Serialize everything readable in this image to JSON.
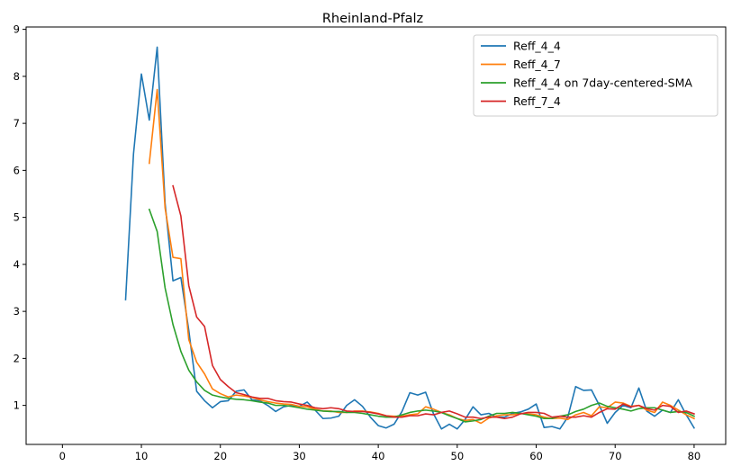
{
  "chart_data": {
    "type": "line",
    "title": "Rheinland-Pfalz",
    "xlabel": "",
    "ylabel": "",
    "xlim": [
      -4.6,
      84.0
    ],
    "ylim": [
      0.17,
      9.05
    ],
    "xticks": [
      0,
      10,
      20,
      30,
      40,
      50,
      60,
      70,
      80
    ],
    "yticks": [
      1,
      2,
      3,
      4,
      5,
      6,
      7,
      8,
      9
    ],
    "grid": false,
    "legend_position": "top-right",
    "series": [
      {
        "name": "Reff_4_4",
        "color": "#1f77b4",
        "x": [
          8,
          9,
          10,
          11,
          12,
          13,
          14,
          15,
          16,
          17,
          18,
          19,
          20,
          21,
          22,
          23,
          24,
          25,
          26,
          27,
          28,
          29,
          30,
          31,
          32,
          33,
          34,
          35,
          36,
          37,
          38,
          39,
          40,
          41,
          42,
          43,
          44,
          45,
          46,
          47,
          48,
          49,
          50,
          51,
          52,
          53,
          54,
          55,
          56,
          57,
          58,
          59,
          60,
          61,
          62,
          63,
          64,
          65,
          66,
          67,
          68,
          69,
          70,
          71,
          72,
          73,
          74,
          75,
          76,
          77,
          78,
          79,
          80
        ],
        "y": [
          3.25,
          6.35,
          8.05,
          7.07,
          8.62,
          5.3,
          3.65,
          3.72,
          2.6,
          1.3,
          1.1,
          0.95,
          1.08,
          1.1,
          1.3,
          1.33,
          1.12,
          1.1,
          1.0,
          0.87,
          0.97,
          1.0,
          0.98,
          1.07,
          0.9,
          0.72,
          0.73,
          0.77,
          1.0,
          1.12,
          0.98,
          0.75,
          0.57,
          0.52,
          0.6,
          0.87,
          1.27,
          1.22,
          1.28,
          0.82,
          0.5,
          0.6,
          0.5,
          0.7,
          0.97,
          0.8,
          0.83,
          0.75,
          0.75,
          0.83,
          0.86,
          0.92,
          1.03,
          0.53,
          0.55,
          0.5,
          0.75,
          1.4,
          1.32,
          1.33,
          1.0,
          0.62,
          0.85,
          1.0,
          0.95,
          1.37,
          0.88,
          0.77,
          0.9,
          0.85,
          1.12,
          0.8,
          0.52
        ]
      },
      {
        "name": "Reff_4_7",
        "color": "#ff7f0e",
        "x": [
          11,
          12,
          13,
          14,
          15,
          16,
          17,
          18,
          19,
          20,
          21,
          22,
          23,
          24,
          25,
          26,
          27,
          28,
          29,
          30,
          31,
          32,
          33,
          34,
          35,
          36,
          37,
          38,
          39,
          40,
          41,
          42,
          43,
          44,
          45,
          46,
          47,
          48,
          49,
          50,
          51,
          52,
          53,
          54,
          55,
          56,
          57,
          58,
          59,
          60,
          61,
          62,
          63,
          64,
          65,
          66,
          67,
          68,
          69,
          70,
          71,
          72,
          73,
          74,
          75,
          76,
          77,
          78,
          79,
          80
        ],
        "y": [
          6.15,
          7.72,
          5.2,
          4.15,
          4.12,
          2.4,
          1.92,
          1.67,
          1.35,
          1.25,
          1.18,
          1.22,
          1.2,
          1.17,
          1.12,
          1.08,
          1.05,
          1.03,
          1.02,
          0.98,
          0.97,
          0.92,
          0.88,
          0.88,
          0.85,
          0.85,
          0.88,
          0.88,
          0.86,
          0.83,
          0.78,
          0.77,
          0.77,
          0.8,
          0.82,
          0.97,
          0.92,
          0.85,
          0.8,
          0.72,
          0.68,
          0.7,
          0.62,
          0.73,
          0.78,
          0.8,
          0.8,
          0.83,
          0.82,
          0.8,
          0.75,
          0.72,
          0.73,
          0.7,
          0.8,
          0.85,
          0.78,
          0.97,
          0.95,
          1.07,
          1.05,
          0.98,
          1.0,
          0.9,
          0.85,
          1.07,
          1.0,
          0.9,
          0.8,
          0.72
        ]
      },
      {
        "name": "Reff_4_4 on 7day-centered-SMA",
        "color": "#2ca02c",
        "x": [
          11,
          12,
          13,
          14,
          15,
          16,
          17,
          18,
          19,
          20,
          21,
          22,
          23,
          24,
          25,
          26,
          27,
          28,
          29,
          30,
          31,
          32,
          33,
          34,
          35,
          36,
          37,
          38,
          39,
          40,
          41,
          42,
          43,
          44,
          45,
          46,
          47,
          48,
          49,
          50,
          51,
          52,
          53,
          54,
          55,
          56,
          57,
          58,
          59,
          60,
          61,
          62,
          63,
          64,
          65,
          66,
          67,
          68,
          69,
          70,
          71,
          72,
          73,
          74,
          75,
          76,
          77,
          78,
          79,
          80
        ],
        "y": [
          5.17,
          4.7,
          3.5,
          2.72,
          2.15,
          1.75,
          1.5,
          1.32,
          1.22,
          1.18,
          1.15,
          1.13,
          1.12,
          1.1,
          1.07,
          1.05,
          1.0,
          1.0,
          0.98,
          0.95,
          0.92,
          0.9,
          0.88,
          0.87,
          0.87,
          0.85,
          0.85,
          0.83,
          0.8,
          0.77,
          0.75,
          0.75,
          0.8,
          0.85,
          0.88,
          0.9,
          0.88,
          0.85,
          0.78,
          0.72,
          0.65,
          0.67,
          0.7,
          0.77,
          0.83,
          0.83,
          0.85,
          0.83,
          0.8,
          0.77,
          0.72,
          0.72,
          0.77,
          0.8,
          0.87,
          0.92,
          1.0,
          1.05,
          0.98,
          0.95,
          0.92,
          0.88,
          0.93,
          0.95,
          0.95,
          0.9,
          0.85,
          0.87,
          0.85,
          0.77
        ]
      },
      {
        "name": "Reff_7_4",
        "color": "#d62728",
        "x": [
          14,
          15,
          16,
          17,
          18,
          19,
          20,
          21,
          22,
          23,
          24,
          25,
          26,
          27,
          28,
          29,
          30,
          31,
          32,
          33,
          34,
          35,
          36,
          37,
          38,
          39,
          40,
          41,
          42,
          43,
          44,
          45,
          46,
          47,
          48,
          49,
          50,
          51,
          52,
          53,
          54,
          55,
          56,
          57,
          58,
          59,
          60,
          61,
          62,
          63,
          64,
          65,
          66,
          67,
          68,
          69,
          70,
          71,
          72,
          73,
          74,
          75,
          76,
          77,
          78,
          79,
          80
        ],
        "y": [
          5.67,
          5.03,
          3.55,
          2.88,
          2.68,
          1.85,
          1.55,
          1.4,
          1.27,
          1.23,
          1.18,
          1.15,
          1.15,
          1.1,
          1.08,
          1.07,
          1.03,
          1.0,
          0.95,
          0.93,
          0.95,
          0.93,
          0.88,
          0.87,
          0.87,
          0.85,
          0.82,
          0.78,
          0.75,
          0.75,
          0.78,
          0.78,
          0.82,
          0.8,
          0.85,
          0.88,
          0.82,
          0.75,
          0.75,
          0.72,
          0.75,
          0.75,
          0.72,
          0.75,
          0.82,
          0.85,
          0.85,
          0.83,
          0.75,
          0.77,
          0.75,
          0.75,
          0.78,
          0.75,
          0.85,
          0.93,
          0.92,
          1.03,
          0.97,
          1.0,
          0.93,
          0.9,
          1.0,
          0.98,
          0.85,
          0.88,
          0.82
        ]
      }
    ]
  }
}
